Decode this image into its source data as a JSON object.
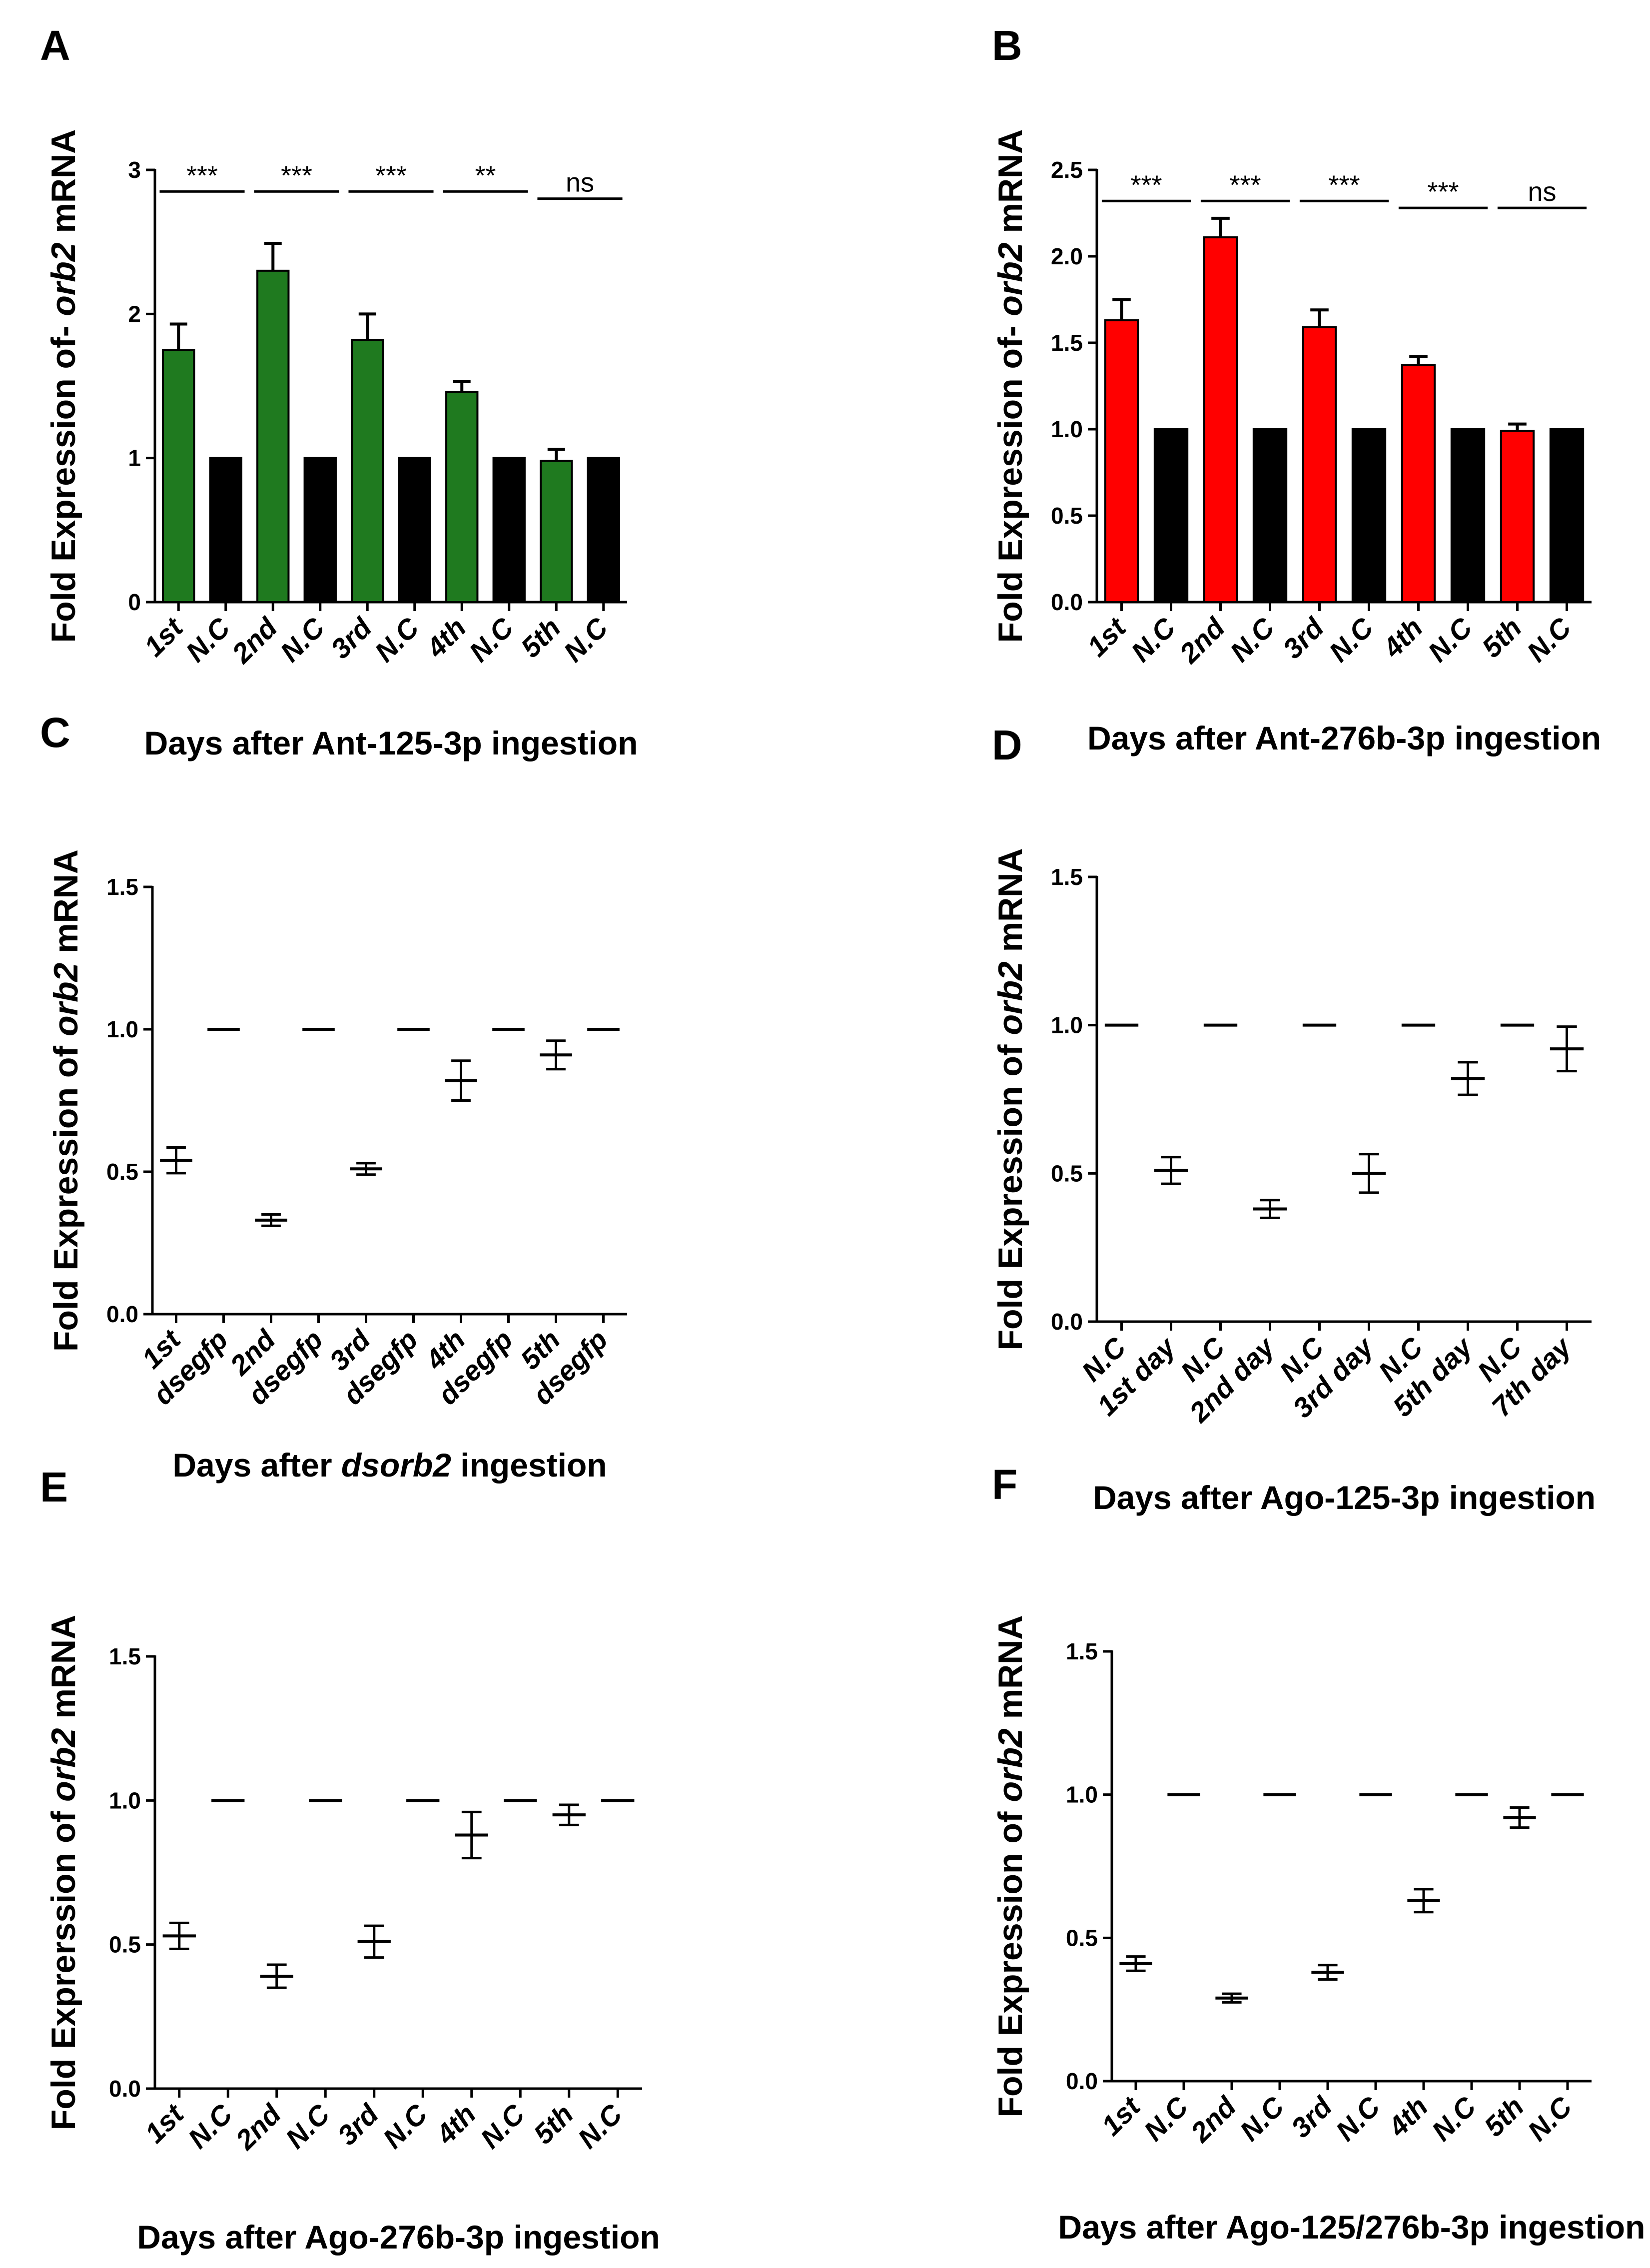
{
  "chart_data": [
    {
      "id": "A",
      "type": "bar",
      "panel_label": "A",
      "title": "",
      "ylabel_pre": "Fold Expression of- ",
      "ylabel_gene": "orb2",
      "ylabel_post": " mRNA",
      "xlabel_pre": "Days after Ant-125-3p ingestion",
      "xlabel_italic": "",
      "xlabel_post": "",
      "ylim": [
        0,
        3
      ],
      "yticks": [
        "0",
        "1",
        "2",
        "3"
      ],
      "ytick_values": [
        0,
        1,
        2,
        3
      ],
      "categories": [
        "1st",
        "N.C",
        "2nd",
        "N.C",
        "3rd",
        "N.C",
        "4th",
        "N.C",
        "5th",
        "N.C"
      ],
      "values": [
        1.75,
        1.0,
        2.3,
        1.0,
        1.82,
        1.0,
        1.46,
        1.0,
        0.98,
        1.0
      ],
      "errors": [
        0.18,
        0,
        0.19,
        0,
        0.18,
        0,
        0.07,
        0,
        0.08,
        0
      ],
      "colors": [
        "#1f7a1f",
        "#000000",
        "#1f7a1f",
        "#000000",
        "#1f7a1f",
        "#000000",
        "#1f7a1f",
        "#000000",
        "#1f7a1f",
        "#000000"
      ],
      "significance": [
        {
          "pair": [
            0,
            1
          ],
          "label": "***",
          "y": 2.85
        },
        {
          "pair": [
            2,
            3
          ],
          "label": "***",
          "y": 2.85
        },
        {
          "pair": [
            4,
            5
          ],
          "label": "***",
          "y": 2.85
        },
        {
          "pair": [
            6,
            7
          ],
          "label": "**",
          "y": 2.85
        },
        {
          "pair": [
            8,
            9
          ],
          "label": "ns",
          "y": 2.8
        }
      ]
    },
    {
      "id": "B",
      "type": "bar",
      "panel_label": "B",
      "title": "",
      "ylabel_pre": "Fold Expression of- ",
      "ylabel_gene": "orb2",
      "ylabel_post": " mRNA",
      "xlabel_pre": "Days after Ant-276b-3p ingestion",
      "xlabel_italic": "",
      "xlabel_post": "",
      "ylim": [
        0,
        2.5
      ],
      "yticks": [
        "0.0",
        "0.5",
        "1.0",
        "1.5",
        "2.0",
        "2.5"
      ],
      "ytick_values": [
        0,
        0.5,
        1,
        1.5,
        2,
        2.5
      ],
      "categories": [
        "1st",
        "N.C",
        "2nd",
        "N.C",
        "3rd",
        "N.C",
        "4th",
        "N.C",
        "5th",
        "N.C"
      ],
      "values": [
        1.63,
        1.0,
        2.11,
        1.0,
        1.59,
        1.0,
        1.37,
        1.0,
        0.99,
        1.0
      ],
      "errors": [
        0.12,
        0,
        0.11,
        0,
        0.1,
        0,
        0.05,
        0,
        0.04,
        0
      ],
      "colors": [
        "#ff0000",
        "#000000",
        "#ff0000",
        "#000000",
        "#ff0000",
        "#000000",
        "#ff0000",
        "#000000",
        "#ff0000",
        "#000000"
      ],
      "significance": [
        {
          "pair": [
            0,
            1
          ],
          "label": "***",
          "y": 2.32
        },
        {
          "pair": [
            2,
            3
          ],
          "label": "***",
          "y": 2.32
        },
        {
          "pair": [
            4,
            5
          ],
          "label": "***",
          "y": 2.32
        },
        {
          "pair": [
            6,
            7
          ],
          "label": "***",
          "y": 2.28
        },
        {
          "pair": [
            8,
            9
          ],
          "label": "ns",
          "y": 2.28
        }
      ]
    },
    {
      "id": "C",
      "type": "scatter",
      "panel_label": "C",
      "title": "",
      "ylabel_pre": "Fold Expression of  ",
      "ylabel_gene": "orb2",
      "ylabel_post": " mRNA",
      "xlabel_pre": "Days after ",
      "xlabel_italic": "dsorb2",
      "xlabel_post": " ingestion",
      "ylim": [
        0,
        1.5
      ],
      "yticks": [
        "0.0",
        "0.5",
        "1.0",
        "1.5"
      ],
      "ytick_values": [
        0,
        0.5,
        1,
        1.5
      ],
      "categories": [
        "1st",
        "dsegfp",
        "2nd",
        "dsegfp",
        "3rd",
        "dsegfp",
        "4th",
        "dsegfp",
        "5th",
        "dsegfp"
      ],
      "values": [
        0.54,
        1.0,
        0.33,
        1.0,
        0.51,
        1.0,
        0.82,
        1.0,
        0.91,
        1.0
      ],
      "errors": [
        0.045,
        0,
        0.02,
        0,
        0.02,
        0,
        0.07,
        0,
        0.05,
        0
      ]
    },
    {
      "id": "D",
      "type": "scatter",
      "panel_label": "D",
      "title": "",
      "ylabel_pre": "Fold Expression of  ",
      "ylabel_gene": "orb2",
      "ylabel_post": " mRNA",
      "xlabel_pre": "Days after Ago-125-3p ingestion",
      "xlabel_italic": "",
      "xlabel_post": "",
      "ylim": [
        0,
        1.5
      ],
      "yticks": [
        "0.0",
        "0.5",
        "1.0",
        "1.5"
      ],
      "ytick_values": [
        0,
        0.5,
        1,
        1.5
      ],
      "categories": [
        "N.C",
        "1st day",
        "N.C",
        "2nd day",
        "N.C",
        "3rd day",
        "N.C",
        "5th day",
        "N.C",
        "7th day"
      ],
      "values": [
        1.0,
        0.51,
        1.0,
        0.38,
        1.0,
        0.5,
        1.0,
        0.82,
        1.0,
        0.92
      ],
      "errors": [
        0,
        0.045,
        0,
        0.03,
        0,
        0.065,
        0,
        0.055,
        0,
        0.075
      ]
    },
    {
      "id": "E",
      "type": "scatter",
      "panel_label": "E",
      "title": "",
      "ylabel_pre": "Fold Exprerssion of  ",
      "ylabel_gene": "orb2",
      "ylabel_post": " mRNA",
      "xlabel_pre": "Days after Ago-276b-3p ingestion",
      "xlabel_italic": "",
      "xlabel_post": "",
      "ylim": [
        0,
        1.5
      ],
      "yticks": [
        "0.0",
        "0.5",
        "1.0",
        "1.5"
      ],
      "ytick_values": [
        0,
        0.5,
        1,
        1.5
      ],
      "categories": [
        "1st",
        "N.C",
        "2nd",
        "N.C",
        "3rd",
        "N.C",
        "4th",
        "N.C",
        "5th",
        "N.C"
      ],
      "values": [
        0.53,
        1.0,
        0.39,
        1.0,
        0.51,
        1.0,
        0.88,
        1.0,
        0.95,
        1.0
      ],
      "errors": [
        0.045,
        0,
        0.04,
        0,
        0.055,
        0,
        0.08,
        0,
        0.035,
        0
      ]
    },
    {
      "id": "F",
      "type": "scatter",
      "panel_label": "F",
      "title": "",
      "ylabel_pre": "Fold Expression of  ",
      "ylabel_gene": "orb2",
      "ylabel_post": " mRNA",
      "xlabel_pre": "Days after Ago-125/276b-3p ingestion",
      "xlabel_italic": "",
      "xlabel_post": "",
      "ylim": [
        0,
        1.5
      ],
      "yticks": [
        "0.0",
        "0.5",
        "1.0",
        "1.5"
      ],
      "ytick_values": [
        0,
        0.5,
        1,
        1.5
      ],
      "categories": [
        "1st",
        "N.C",
        "2nd",
        "N.C",
        "3rd",
        "N.C",
        "4th",
        "N.C",
        "5th",
        "N.C"
      ],
      "values": [
        0.41,
        1.0,
        0.29,
        1.0,
        0.38,
        1.0,
        0.63,
        1.0,
        0.92,
        1.0
      ],
      "errors": [
        0.025,
        0,
        0.015,
        0,
        0.025,
        0,
        0.04,
        0,
        0.035,
        0
      ]
    }
  ]
}
